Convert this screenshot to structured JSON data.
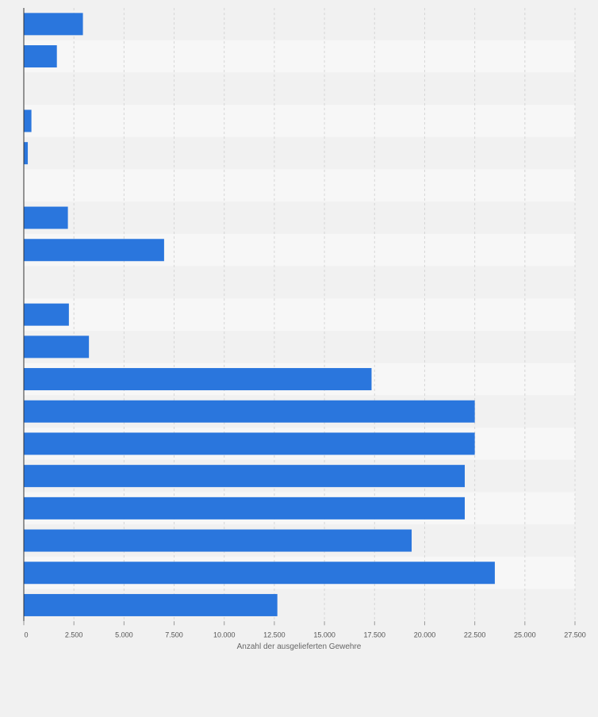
{
  "chart_data": {
    "type": "bar",
    "orientation": "horizontal",
    "title": "",
    "xlabel": "Anzahl der ausgelieferten Gewehre",
    "ylabel": "",
    "xlim": [
      0,
      27500
    ],
    "x_ticks": [
      0,
      2500,
      5000,
      7500,
      10000,
      12500,
      15000,
      17500,
      20000,
      22500,
      25000,
      27500
    ],
    "x_tick_labels": [
      "0",
      "2.500",
      "5.000",
      "7.500",
      "10.000",
      "12.500",
      "15.000",
      "17.500",
      "20.000",
      "22.500",
      "25.000",
      "27.500"
    ],
    "grid": true,
    "legend": "none",
    "categories": [
      "",
      "",
      "",
      "",
      "",
      "",
      "",
      "",
      "",
      "",
      "",
      "",
      "",
      "",
      "",
      "",
      "",
      "",
      ""
    ],
    "values": [
      2950,
      1650,
      null,
      380,
      200,
      null,
      2200,
      7000,
      null,
      2250,
      3250,
      17350,
      22500,
      22500,
      22000,
      22000,
      19350,
      23500,
      12650
    ],
    "colors": {
      "bar": "#2a76dd",
      "background": "#f1f1f1",
      "band_light": "#f7f7f7",
      "band_dark": "#f1f1f1",
      "grid": "#d6d6d6",
      "tick_text": "#555555"
    }
  }
}
